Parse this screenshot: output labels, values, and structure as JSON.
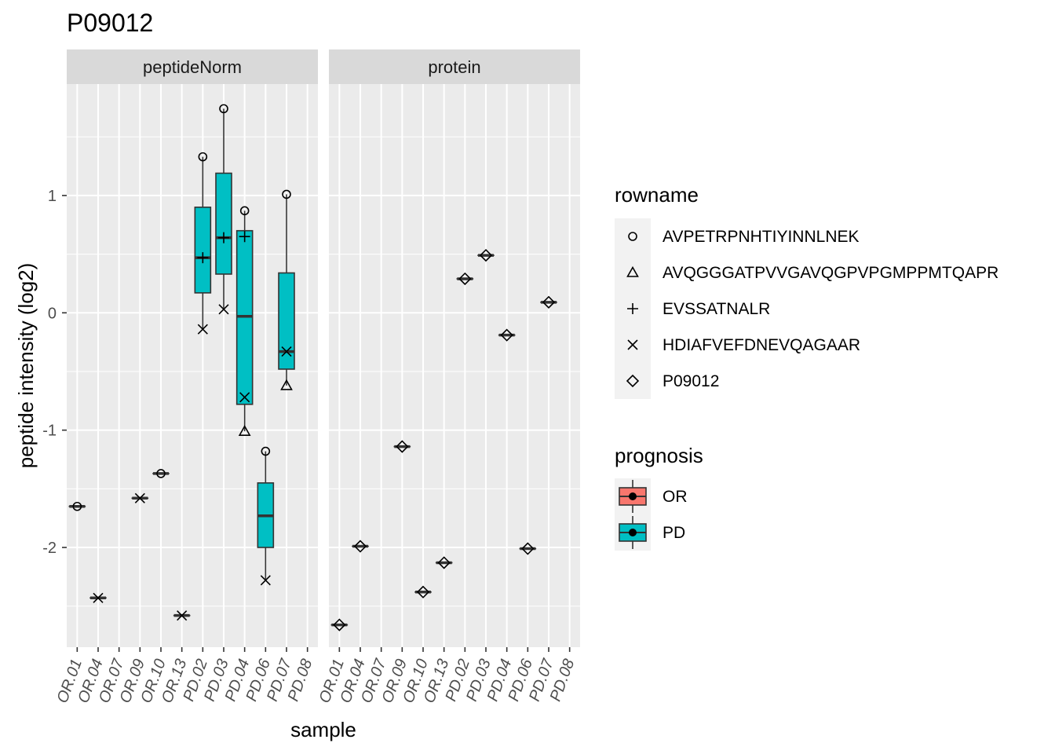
{
  "chart_data": {
    "type": "box",
    "title": "P09012",
    "xlabel": "sample",
    "ylabel": "peptide intensity (log2)",
    "ylim": [
      -2.85,
      1.95
    ],
    "yticks": [
      -2,
      -1,
      0,
      1
    ],
    "ytick_labels": [
      "-2",
      "-1",
      "0",
      "1"
    ],
    "categories": [
      "OR.01",
      "OR.04",
      "OR.07",
      "OR.09",
      "OR.10",
      "OR.13",
      "PD.02",
      "PD.03",
      "PD.04",
      "PD.06",
      "PD.07",
      "PD.08"
    ],
    "facets": [
      {
        "label": "peptideNorm",
        "boxes": [
          {
            "sample": "OR.01",
            "prognosis": "OR",
            "q1": -1.65,
            "median": -1.65,
            "q3": -1.65,
            "lower": -1.65,
            "upper": -1.65
          },
          {
            "sample": "OR.04",
            "prognosis": "OR",
            "q1": -2.43,
            "median": -2.43,
            "q3": -2.43,
            "lower": -2.43,
            "upper": -2.43
          },
          {
            "sample": "OR.09",
            "prognosis": "OR",
            "q1": -1.58,
            "median": -1.58,
            "q3": -1.58,
            "lower": -1.58,
            "upper": -1.58
          },
          {
            "sample": "OR.10",
            "prognosis": "OR",
            "q1": -1.37,
            "median": -1.37,
            "q3": -1.37,
            "lower": -1.37,
            "upper": -1.37
          },
          {
            "sample": "OR.13",
            "prognosis": "OR",
            "q1": -2.58,
            "median": -2.58,
            "q3": -2.58,
            "lower": -2.58,
            "upper": -2.58
          },
          {
            "sample": "PD.02",
            "prognosis": "PD",
            "q1": 0.17,
            "median": 0.47,
            "q3": 0.9,
            "lower": -0.14,
            "upper": 1.33
          },
          {
            "sample": "PD.03",
            "prognosis": "PD",
            "q1": 0.33,
            "median": 0.64,
            "q3": 1.19,
            "lower": 0.03,
            "upper": 1.74
          },
          {
            "sample": "PD.04",
            "prognosis": "PD",
            "q1": -0.78,
            "median": -0.03,
            "q3": 0.7,
            "lower": -1.01,
            "upper": 0.87
          },
          {
            "sample": "PD.06",
            "prognosis": "PD",
            "q1": -2.0,
            "median": -1.73,
            "q3": -1.45,
            "lower": -2.28,
            "upper": -1.18
          },
          {
            "sample": "PD.07",
            "prognosis": "PD",
            "q1": -0.48,
            "median": -0.33,
            "q3": 0.34,
            "lower": -0.62,
            "upper": 1.01
          }
        ],
        "points": [
          {
            "sample": "OR.01",
            "rowname": "AVPETRPNHTIYINNLNEK",
            "y": -1.65
          },
          {
            "sample": "OR.04",
            "rowname": "HDIAFVEFDNEVQAGAAR",
            "y": -2.43
          },
          {
            "sample": "OR.09",
            "rowname": "HDIAFVEFDNEVQAGAAR",
            "y": -1.58
          },
          {
            "sample": "OR.10",
            "rowname": "AVPETRPNHTIYINNLNEK",
            "y": -1.37
          },
          {
            "sample": "OR.13",
            "rowname": "HDIAFVEFDNEVQAGAAR",
            "y": -2.58
          },
          {
            "sample": "PD.02",
            "rowname": "AVPETRPNHTIYINNLNEK",
            "y": 1.33
          },
          {
            "sample": "PD.02",
            "rowname": "EVSSATNALR",
            "y": 0.47
          },
          {
            "sample": "PD.02",
            "rowname": "HDIAFVEFDNEVQAGAAR",
            "y": -0.14
          },
          {
            "sample": "PD.03",
            "rowname": "AVPETRPNHTIYINNLNEK",
            "y": 1.74
          },
          {
            "sample": "PD.03",
            "rowname": "EVSSATNALR",
            "y": 0.64
          },
          {
            "sample": "PD.03",
            "rowname": "HDIAFVEFDNEVQAGAAR",
            "y": 0.03
          },
          {
            "sample": "PD.04",
            "rowname": "AVPETRPNHTIYINNLNEK",
            "y": 0.87
          },
          {
            "sample": "PD.04",
            "rowname": "EVSSATNALR",
            "y": 0.65
          },
          {
            "sample": "PD.04",
            "rowname": "HDIAFVEFDNEVQAGAAR",
            "y": -0.72
          },
          {
            "sample": "PD.04",
            "rowname": "AVQGGGATPVVGAVQGPVPGMPPMTQAPR",
            "y": -1.01
          },
          {
            "sample": "PD.06",
            "rowname": "AVPETRPNHTIYINNLNEK",
            "y": -1.18
          },
          {
            "sample": "PD.06",
            "rowname": "HDIAFVEFDNEVQAGAAR",
            "y": -2.28
          },
          {
            "sample": "PD.07",
            "rowname": "AVPETRPNHTIYINNLNEK",
            "y": 1.01
          },
          {
            "sample": "PD.07",
            "rowname": "HDIAFVEFDNEVQAGAAR",
            "y": -0.33
          },
          {
            "sample": "PD.07",
            "rowname": "AVQGGGATPVVGAVQGPVPGMPPMTQAPR",
            "y": -0.62
          }
        ]
      },
      {
        "label": "protein",
        "boxes": [
          {
            "sample": "OR.01",
            "prognosis": "OR",
            "q1": -2.66,
            "median": -2.66,
            "q3": -2.66,
            "lower": -2.66,
            "upper": -2.66
          },
          {
            "sample": "OR.04",
            "prognosis": "OR",
            "q1": -1.99,
            "median": -1.99,
            "q3": -1.99,
            "lower": -1.99,
            "upper": -1.99
          },
          {
            "sample": "OR.09",
            "prognosis": "OR",
            "q1": -1.14,
            "median": -1.14,
            "q3": -1.14,
            "lower": -1.14,
            "upper": -1.14
          },
          {
            "sample": "OR.10",
            "prognosis": "OR",
            "q1": -2.38,
            "median": -2.38,
            "q3": -2.38,
            "lower": -2.38,
            "upper": -2.38
          },
          {
            "sample": "OR.13",
            "prognosis": "OR",
            "q1": -2.13,
            "median": -2.13,
            "q3": -2.13,
            "lower": -2.13,
            "upper": -2.13
          },
          {
            "sample": "PD.02",
            "prognosis": "PD",
            "q1": 0.29,
            "median": 0.29,
            "q3": 0.29,
            "lower": 0.29,
            "upper": 0.29
          },
          {
            "sample": "PD.03",
            "prognosis": "PD",
            "q1": 0.49,
            "median": 0.49,
            "q3": 0.49,
            "lower": 0.49,
            "upper": 0.49
          },
          {
            "sample": "PD.04",
            "prognosis": "PD",
            "q1": -0.19,
            "median": -0.19,
            "q3": -0.19,
            "lower": -0.19,
            "upper": -0.19
          },
          {
            "sample": "PD.06",
            "prognosis": "PD",
            "q1": -2.01,
            "median": -2.01,
            "q3": -2.01,
            "lower": -2.01,
            "upper": -2.01
          },
          {
            "sample": "PD.07",
            "prognosis": "PD",
            "q1": 0.09,
            "median": 0.09,
            "q3": 0.09,
            "lower": 0.09,
            "upper": 0.09
          }
        ],
        "points": [
          {
            "sample": "OR.01",
            "rowname": "P09012",
            "y": -2.66
          },
          {
            "sample": "OR.04",
            "rowname": "P09012",
            "y": -1.99
          },
          {
            "sample": "OR.09",
            "rowname": "P09012",
            "y": -1.14
          },
          {
            "sample": "OR.10",
            "rowname": "P09012",
            "y": -2.38
          },
          {
            "sample": "OR.13",
            "rowname": "P09012",
            "y": -2.13
          },
          {
            "sample": "PD.02",
            "rowname": "P09012",
            "y": 0.29
          },
          {
            "sample": "PD.03",
            "rowname": "P09012",
            "y": 0.49
          },
          {
            "sample": "PD.04",
            "rowname": "P09012",
            "y": -0.19
          },
          {
            "sample": "PD.06",
            "rowname": "P09012",
            "y": -2.01
          },
          {
            "sample": "PD.07",
            "rowname": "P09012",
            "y": 0.09
          }
        ]
      }
    ],
    "legend_shape": {
      "title": "rowname",
      "items": [
        {
          "label": "AVPETRPNHTIYINNLNEK",
          "shape": "circle"
        },
        {
          "label": "AVQGGGATPVVGAVQGPVPGMPPMTQAPR",
          "shape": "triangle"
        },
        {
          "label": "EVSSATNALR",
          "shape": "plus"
        },
        {
          "label": "HDIAFVEFDNEVQAGAAR",
          "shape": "cross"
        },
        {
          "label": "P09012",
          "shape": "diamond"
        }
      ]
    },
    "legend_fill": {
      "title": "prognosis",
      "items": [
        {
          "label": "OR",
          "color": "#F8766D"
        },
        {
          "label": "PD",
          "color": "#00BFC4"
        }
      ]
    },
    "grid": true,
    "legend_position": "right"
  }
}
